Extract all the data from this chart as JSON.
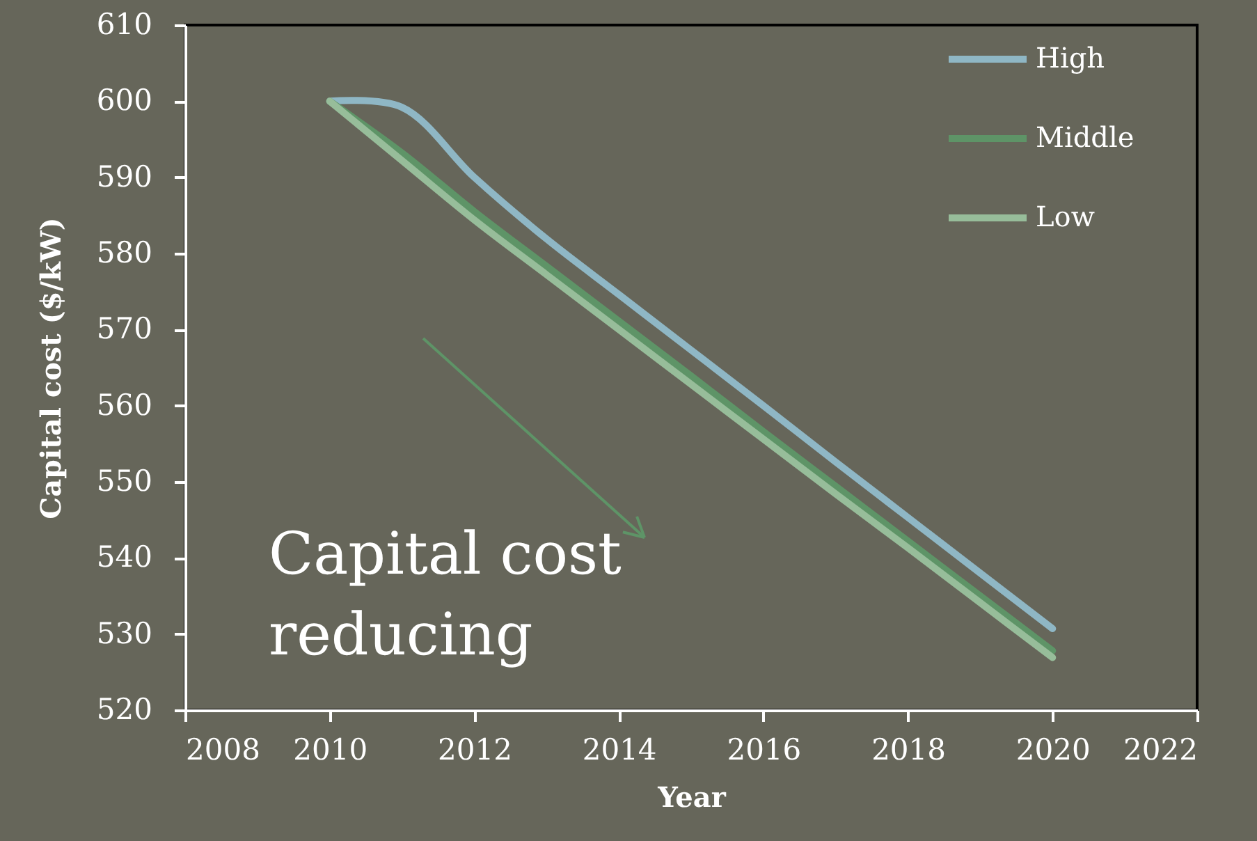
{
  "chart_data": {
    "type": "line",
    "xlabel": "Year",
    "ylabel": "Capital cost ($/kW)",
    "x": [
      2010,
      2011,
      2012,
      2013,
      2014,
      2015,
      2016,
      2017,
      2018,
      2019,
      2020
    ],
    "series": [
      {
        "name": "High",
        "color": "#8fb7c5",
        "values": [
          600,
          599.2,
          590.0,
          581.9,
          574.6,
          567.3,
          560.0,
          552.6,
          545.3,
          538.0,
          530.7
        ]
      },
      {
        "name": "Middle",
        "color": "#5e9467",
        "values": [
          600,
          593.2,
          585.5,
          578.3,
          571.1,
          563.9,
          556.6,
          549.4,
          542.2,
          535.0,
          527.8
        ]
      },
      {
        "name": "Low",
        "color": "#97bd9a",
        "values": [
          600,
          592.2,
          584.4,
          577.2,
          570.0,
          562.8,
          555.6,
          548.4,
          541.3,
          534.1,
          526.9
        ]
      }
    ],
    "xlim": [
      2008,
      2022
    ],
    "xticks": [
      2008,
      2010,
      2012,
      2014,
      2016,
      2018,
      2020,
      2022
    ],
    "ylim": [
      520,
      610
    ],
    "yticks": [
      520,
      530,
      540,
      550,
      560,
      570,
      580,
      590,
      600,
      610
    ],
    "grid": false,
    "legend": "top right",
    "line_style": "solid",
    "annotations": [
      "Capital cost reducing"
    ]
  }
}
